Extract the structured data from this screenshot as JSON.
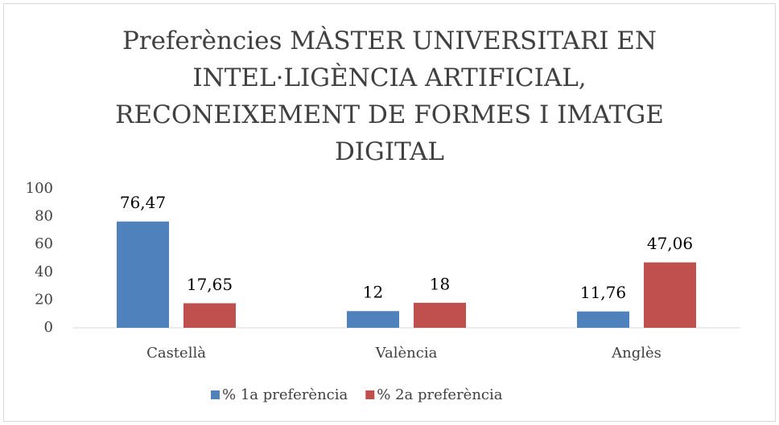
{
  "chart_data": {
    "type": "bar",
    "title": "Preferències MÀSTER UNIVERSITARI EN INTEL·LIGÈNCIA ARTIFICIAL, RECONEIXEMENT DE FORMES I IMATGE DIGITAL",
    "categories": [
      "Castellà",
      "València",
      "Anglès"
    ],
    "series": [
      {
        "name": "% 1a preferència",
        "color": "#4f81bd",
        "values": [
          76.47,
          12,
          11.76
        ],
        "value_labels": [
          "76,47",
          "12",
          "11,76"
        ]
      },
      {
        "name": "% 2a preferència",
        "color": "#c0504d",
        "values": [
          17.65,
          18,
          47.06
        ],
        "value_labels": [
          "17,65",
          "18",
          "47,06"
        ]
      }
    ],
    "ylim": [
      0,
      100
    ],
    "yticks": [
      0,
      20,
      40,
      60,
      80,
      100
    ],
    "grid": false,
    "legend": "bottom"
  }
}
